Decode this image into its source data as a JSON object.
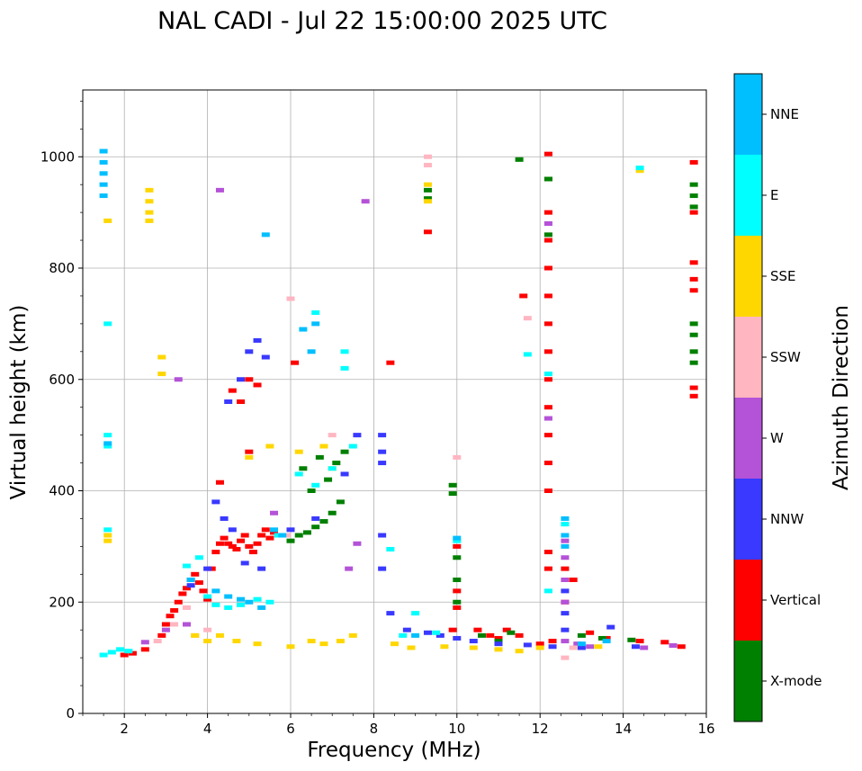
{
  "chart_data": {
    "type": "scatter",
    "title": "NAL CADI - Jul 22 15:00:00 2025 UTC",
    "xlabel": "Frequency (MHz)",
    "ylabel": "Virtual height (km)",
    "xlim": [
      1,
      16
    ],
    "ylim": [
      0,
      1120
    ],
    "xticks": [
      2,
      4,
      6,
      8,
      10,
      12,
      14,
      16
    ],
    "yticks": [
      0,
      200,
      400,
      600,
      800,
      1000
    ],
    "grid": true,
    "colorbar": {
      "label": "Azimuth Direction",
      "categories": [
        "X-mode",
        "Vertical",
        "NNW",
        "W",
        "SSW",
        "SSE",
        "E",
        "NNE"
      ],
      "colors": [
        "#008000",
        "#ff0000",
        "#3939ff",
        "#b452d8",
        "#ffb6c1",
        "#ffd700",
        "#00ffff",
        "#00bfff"
      ]
    },
    "series": [
      {
        "name": "Vertical",
        "color": "#ff0000",
        "points": [
          [
            2.0,
            105
          ],
          [
            2.2,
            108
          ],
          [
            2.5,
            115
          ],
          [
            2.9,
            140
          ],
          [
            3.0,
            160
          ],
          [
            3.1,
            175
          ],
          [
            3.2,
            185
          ],
          [
            3.3,
            200
          ],
          [
            3.4,
            215
          ],
          [
            3.5,
            225
          ],
          [
            3.6,
            240
          ],
          [
            3.7,
            250
          ],
          [
            3.8,
            235
          ],
          [
            3.9,
            220
          ],
          [
            4.0,
            205
          ],
          [
            4.1,
            260
          ],
          [
            4.2,
            290
          ],
          [
            4.3,
            305
          ],
          [
            4.4,
            315
          ],
          [
            4.5,
            305
          ],
          [
            4.6,
            300
          ],
          [
            4.7,
            295
          ],
          [
            4.8,
            310
          ],
          [
            4.9,
            320
          ],
          [
            5.0,
            300
          ],
          [
            5.1,
            290
          ],
          [
            5.2,
            305
          ],
          [
            5.3,
            320
          ],
          [
            5.4,
            330
          ],
          [
            5.5,
            315
          ],
          [
            5.6,
            325
          ],
          [
            4.6,
            580
          ],
          [
            4.8,
            560
          ],
          [
            5.0,
            600
          ],
          [
            5.2,
            590
          ],
          [
            5.0,
            470
          ],
          [
            4.3,
            415
          ],
          [
            6.1,
            630
          ],
          [
            9.9,
            150
          ],
          [
            10.0,
            190
          ],
          [
            10.0,
            300
          ],
          [
            10.0,
            220
          ],
          [
            10.5,
            150
          ],
          [
            10.8,
            140
          ],
          [
            11.0,
            135
          ],
          [
            11.2,
            150
          ],
          [
            11.5,
            140
          ],
          [
            12.0,
            125
          ],
          [
            12.3,
            130
          ],
          [
            12.6,
            200
          ],
          [
            12.6,
            260
          ],
          [
            12.8,
            240
          ],
          [
            13.2,
            145
          ],
          [
            13.6,
            135
          ],
          [
            14.4,
            130
          ],
          [
            15.0,
            128
          ],
          [
            15.4,
            120
          ],
          [
            12.2,
            1005
          ],
          [
            12.2,
            960
          ],
          [
            12.2,
            900
          ],
          [
            12.2,
            850
          ],
          [
            12.2,
            800
          ],
          [
            12.2,
            750
          ],
          [
            12.2,
            700
          ],
          [
            12.2,
            650
          ],
          [
            12.2,
            600
          ],
          [
            12.2,
            550
          ],
          [
            12.2,
            500
          ],
          [
            12.2,
            450
          ],
          [
            12.2,
            400
          ],
          [
            12.2,
            290
          ],
          [
            12.2,
            260
          ],
          [
            15.7,
            990
          ],
          [
            15.7,
            900
          ],
          [
            15.7,
            810
          ],
          [
            15.7,
            780
          ],
          [
            15.7,
            760
          ],
          [
            15.7,
            585
          ],
          [
            15.7,
            570
          ],
          [
            8.4,
            630
          ],
          [
            9.3,
            865
          ],
          [
            11.6,
            750
          ]
        ]
      },
      {
        "name": "X-mode",
        "color": "#008000",
        "points": [
          [
            6.0,
            310
          ],
          [
            6.2,
            320
          ],
          [
            6.4,
            325
          ],
          [
            6.6,
            335
          ],
          [
            6.8,
            345
          ],
          [
            7.0,
            360
          ],
          [
            7.2,
            380
          ],
          [
            6.5,
            400
          ],
          [
            6.9,
            420
          ],
          [
            7.1,
            450
          ],
          [
            7.3,
            470
          ],
          [
            6.3,
            440
          ],
          [
            6.7,
            460
          ],
          [
            9.9,
            410
          ],
          [
            9.9,
            395
          ],
          [
            10.0,
            200
          ],
          [
            10.0,
            240
          ],
          [
            10.0,
            280
          ],
          [
            10.6,
            140
          ],
          [
            11.0,
            130
          ],
          [
            11.3,
            145
          ],
          [
            13.0,
            140
          ],
          [
            13.5,
            135
          ],
          [
            14.2,
            132
          ],
          [
            9.3,
            940
          ],
          [
            9.3,
            925
          ],
          [
            11.5,
            995
          ],
          [
            15.7,
            950
          ],
          [
            15.7,
            930
          ],
          [
            15.7,
            910
          ],
          [
            15.7,
            700
          ],
          [
            15.7,
            680
          ],
          [
            15.7,
            650
          ],
          [
            15.7,
            630
          ],
          [
            12.2,
            960
          ],
          [
            12.2,
            860
          ]
        ]
      },
      {
        "name": "NNW",
        "color": "#3939ff",
        "points": [
          [
            5.2,
            670
          ],
          [
            5.0,
            650
          ],
          [
            5.4,
            640
          ],
          [
            4.8,
            600
          ],
          [
            4.5,
            560
          ],
          [
            4.2,
            380
          ],
          [
            4.4,
            350
          ],
          [
            4.6,
            330
          ],
          [
            4.9,
            270
          ],
          [
            5.3,
            260
          ],
          [
            4.0,
            260
          ],
          [
            3.6,
            230
          ],
          [
            8.2,
            500
          ],
          [
            8.2,
            470
          ],
          [
            8.2,
            450
          ],
          [
            8.2,
            320
          ],
          [
            8.2,
            260
          ],
          [
            8.4,
            180
          ],
          [
            8.8,
            150
          ],
          [
            9.3,
            145
          ],
          [
            9.6,
            140
          ],
          [
            10.0,
            135
          ],
          [
            10.4,
            130
          ],
          [
            11.0,
            125
          ],
          [
            11.7,
            123
          ],
          [
            12.3,
            120
          ],
          [
            12.6,
            150
          ],
          [
            12.6,
            180
          ],
          [
            12.6,
            220
          ],
          [
            13.0,
            118
          ],
          [
            13.7,
            155
          ],
          [
            14.3,
            120
          ],
          [
            6.0,
            330
          ],
          [
            6.6,
            350
          ],
          [
            7.3,
            430
          ],
          [
            7.6,
            500
          ]
        ]
      },
      {
        "name": "W",
        "color": "#b452d8",
        "points": [
          [
            2.5,
            128
          ],
          [
            3.0,
            150
          ],
          [
            3.5,
            160
          ],
          [
            4.3,
            940
          ],
          [
            7.8,
            920
          ],
          [
            12.2,
            880
          ],
          [
            12.2,
            530
          ],
          [
            12.6,
            130
          ],
          [
            12.6,
            200
          ],
          [
            12.6,
            240
          ],
          [
            12.6,
            280
          ],
          [
            12.6,
            310
          ],
          [
            12.9,
            125
          ],
          [
            13.2,
            120
          ],
          [
            14.5,
            118
          ],
          [
            15.2,
            122
          ],
          [
            7.6,
            305
          ],
          [
            7.4,
            260
          ],
          [
            3.3,
            600
          ],
          [
            5.6,
            360
          ]
        ]
      },
      {
        "name": "SSW",
        "color": "#ffb6c1",
        "points": [
          [
            2.8,
            130
          ],
          [
            3.2,
            160
          ],
          [
            3.5,
            190
          ],
          [
            3.7,
            140
          ],
          [
            4.0,
            150
          ],
          [
            6.0,
            745
          ],
          [
            9.3,
            1000
          ],
          [
            9.3,
            985
          ],
          [
            10.0,
            460
          ],
          [
            11.7,
            710
          ],
          [
            12.6,
            100
          ],
          [
            12.8,
            118
          ],
          [
            7.0,
            500
          ],
          [
            5.9,
            320
          ]
        ]
      },
      {
        "name": "SSE",
        "color": "#ffd700",
        "points": [
          [
            1.6,
            310
          ],
          [
            1.6,
            320
          ],
          [
            1.6,
            885
          ],
          [
            2.6,
            885
          ],
          [
            2.6,
            900
          ],
          [
            2.6,
            920
          ],
          [
            2.6,
            940
          ],
          [
            2.9,
            640
          ],
          [
            2.9,
            610
          ],
          [
            3.7,
            140
          ],
          [
            4.0,
            130
          ],
          [
            4.3,
            140
          ],
          [
            4.7,
            130
          ],
          [
            5.2,
            125
          ],
          [
            6.0,
            120
          ],
          [
            6.5,
            130
          ],
          [
            6.8,
            125
          ],
          [
            7.2,
            130
          ],
          [
            7.5,
            140
          ],
          [
            8.5,
            125
          ],
          [
            8.9,
            118
          ],
          [
            9.3,
            920
          ],
          [
            9.3,
            950
          ],
          [
            9.7,
            120
          ],
          [
            10.4,
            118
          ],
          [
            11.0,
            115
          ],
          [
            11.5,
            112
          ],
          [
            12.0,
            118
          ],
          [
            13.4,
            120
          ],
          [
            14.4,
            975
          ],
          [
            5.0,
            460
          ],
          [
            5.5,
            480
          ],
          [
            6.2,
            470
          ],
          [
            6.8,
            480
          ],
          [
            7.0,
            440
          ]
        ]
      },
      {
        "name": "E",
        "color": "#00ffff",
        "points": [
          [
            1.5,
            105
          ],
          [
            1.7,
            110
          ],
          [
            1.9,
            115
          ],
          [
            2.1,
            112
          ],
          [
            1.6,
            480
          ],
          [
            1.6,
            500
          ],
          [
            1.6,
            330
          ],
          [
            1.6,
            700
          ],
          [
            3.5,
            265
          ],
          [
            3.8,
            280
          ],
          [
            4.0,
            210
          ],
          [
            4.2,
            195
          ],
          [
            4.5,
            190
          ],
          [
            4.8,
            195
          ],
          [
            5.2,
            205
          ],
          [
            5.5,
            200
          ],
          [
            5.7,
            320
          ],
          [
            6.2,
            430
          ],
          [
            6.6,
            410
          ],
          [
            7.0,
            440
          ],
          [
            7.3,
            650
          ],
          [
            7.5,
            480
          ],
          [
            8.4,
            295
          ],
          [
            8.7,
            140
          ],
          [
            9.0,
            180
          ],
          [
            9.5,
            145
          ],
          [
            10.0,
            310
          ],
          [
            11.7,
            645
          ],
          [
            12.2,
            610
          ],
          [
            12.2,
            220
          ],
          [
            12.6,
            340
          ],
          [
            14.4,
            980
          ],
          [
            6.6,
            720
          ],
          [
            7.3,
            620
          ]
        ]
      },
      {
        "name": "NNE",
        "color": "#00bfff",
        "points": [
          [
            1.5,
            1010
          ],
          [
            1.5,
            990
          ],
          [
            1.5,
            970
          ],
          [
            1.5,
            950
          ],
          [
            1.5,
            930
          ],
          [
            1.6,
            485
          ],
          [
            3.6,
            240
          ],
          [
            4.2,
            220
          ],
          [
            4.5,
            210
          ],
          [
            4.8,
            205
          ],
          [
            5.0,
            200
          ],
          [
            5.3,
            190
          ],
          [
            5.6,
            330
          ],
          [
            5.8,
            320
          ],
          [
            6.5,
            650
          ],
          [
            6.6,
            700
          ],
          [
            6.3,
            690
          ],
          [
            5.4,
            860
          ],
          [
            9.0,
            140
          ],
          [
            10.0,
            315
          ],
          [
            12.6,
            350
          ],
          [
            12.6,
            320
          ],
          [
            12.6,
            300
          ],
          [
            13.0,
            125
          ],
          [
            13.6,
            130
          ]
        ]
      }
    ]
  }
}
